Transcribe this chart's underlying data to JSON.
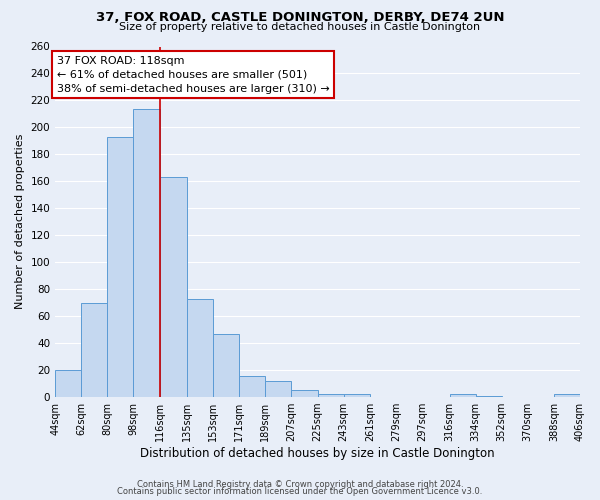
{
  "title": "37, FOX ROAD, CASTLE DONINGTON, DERBY, DE74 2UN",
  "subtitle": "Size of property relative to detached houses in Castle Donington",
  "xlabel": "Distribution of detached houses by size in Castle Donington",
  "ylabel": "Number of detached properties",
  "bar_edges": [
    44,
    62,
    80,
    98,
    116,
    135,
    153,
    171,
    189,
    207,
    225,
    243,
    261,
    279,
    297,
    316,
    334,
    352,
    370,
    388,
    406
  ],
  "bar_heights": [
    20,
    70,
    193,
    214,
    163,
    73,
    47,
    16,
    12,
    5,
    2,
    2,
    0,
    0,
    0,
    2,
    1,
    0,
    0,
    2
  ],
  "bar_color": "#c5d8f0",
  "bar_edge_color": "#5b9bd5",
  "vline_x": 116,
  "vline_color": "#cc0000",
  "ylim": [
    0,
    260
  ],
  "yticks": [
    0,
    20,
    40,
    60,
    80,
    100,
    120,
    140,
    160,
    180,
    200,
    220,
    240,
    260
  ],
  "annotation_title": "37 FOX ROAD: 118sqm",
  "annotation_line1": "← 61% of detached houses are smaller (501)",
  "annotation_line2": "38% of semi-detached houses are larger (310) →",
  "annotation_box_color": "#ffffff",
  "annotation_box_edge": "#cc0000",
  "footer1": "Contains HM Land Registry data © Crown copyright and database right 2024.",
  "footer2": "Contains public sector information licensed under the Open Government Licence v3.0.",
  "bg_color": "#e8eef8",
  "plot_bg_color": "#e8eef8",
  "grid_color": "#ffffff",
  "tick_labels": [
    "44sqm",
    "62sqm",
    "80sqm",
    "98sqm",
    "116sqm",
    "135sqm",
    "153sqm",
    "171sqm",
    "189sqm",
    "207sqm",
    "225sqm",
    "243sqm",
    "261sqm",
    "279sqm",
    "297sqm",
    "316sqm",
    "334sqm",
    "352sqm",
    "370sqm",
    "388sqm",
    "406sqm"
  ]
}
